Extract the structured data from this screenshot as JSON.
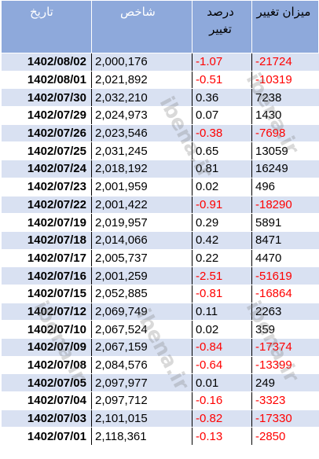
{
  "headers": {
    "date": "تاریخ",
    "index": "شاخص",
    "change_pct": "درصد تغییر",
    "change_amount": "میزان تغییر"
  },
  "rows": [
    {
      "date": "1402/08/02",
      "index": "2,000,176",
      "pct": "-1.07",
      "amount": "-21724",
      "neg": true
    },
    {
      "date": "1402/08/01",
      "index": "2,021,892",
      "pct": "-0.51",
      "amount": "-10319",
      "neg": true
    },
    {
      "date": "1402/07/30",
      "index": "2,032,210",
      "pct": "0.36",
      "amount": "7238",
      "neg": false
    },
    {
      "date": "1402/07/29",
      "index": "2,024,973",
      "pct": "0.07",
      "amount": "1430",
      "neg": false
    },
    {
      "date": "1402/07/26",
      "index": "2,023,546",
      "pct": "-0.38",
      "amount": "-7698",
      "neg": true
    },
    {
      "date": "1402/07/25",
      "index": "2,031,245",
      "pct": "0.65",
      "amount": "13059",
      "neg": false
    },
    {
      "date": "1402/07/24",
      "index": "2,018,192",
      "pct": "0.81",
      "amount": "16249",
      "neg": false
    },
    {
      "date": "1402/07/23",
      "index": "2,001,959",
      "pct": "0.02",
      "amount": "496",
      "neg": false
    },
    {
      "date": "1402/07/22",
      "index": "2,001,422",
      "pct": "-0.91",
      "amount": "-18290",
      "neg": true
    },
    {
      "date": "1402/07/19",
      "index": "2,019,957",
      "pct": "0.29",
      "amount": "5891",
      "neg": false
    },
    {
      "date": "1402/07/18",
      "index": "2,014,066",
      "pct": "0.42",
      "amount": "8471",
      "neg": false
    },
    {
      "date": "1402/07/17",
      "index": "2,005,737",
      "pct": "0.22",
      "amount": "4470",
      "neg": false
    },
    {
      "date": "1402/07/16",
      "index": "2,001,259",
      "pct": "-2.51",
      "amount": "-51619",
      "neg": true
    },
    {
      "date": "1402/07/15",
      "index": "2,052,885",
      "pct": "-0.81",
      "amount": "-16864",
      "neg": true
    },
    {
      "date": "1402/07/12",
      "index": "2,069,749",
      "pct": "0.11",
      "amount": "2263",
      "neg": false
    },
    {
      "date": "1402/07/10",
      "index": "2,067,524",
      "pct": "0.02",
      "amount": "359",
      "neg": false
    },
    {
      "date": "1402/07/09",
      "index": "2,067,159",
      "pct": "-0.84",
      "amount": "-17374",
      "neg": true
    },
    {
      "date": "1402/07/08",
      "index": "2,084,576",
      "pct": "-0.64",
      "amount": "-13399",
      "neg": true
    },
    {
      "date": "1402/07/05",
      "index": "2,097,977",
      "pct": "0.01",
      "amount": "249",
      "neg": false
    },
    {
      "date": "1402/07/04",
      "index": "2,097,712",
      "pct": "-0.16",
      "amount": "-3323",
      "neg": true
    },
    {
      "date": "1402/07/03",
      "index": "2,101,015",
      "pct": "-0.82",
      "amount": "-17330",
      "neg": true
    },
    {
      "date": "1402/07/01",
      "index": "2,118,361",
      "pct": "-0.13",
      "amount": "-2850",
      "neg": true
    }
  ],
  "watermark": "ibena.ir",
  "colors": {
    "header_bg": "#8ea9db",
    "band": "#d9e1f2",
    "negative": "#ff0000"
  }
}
